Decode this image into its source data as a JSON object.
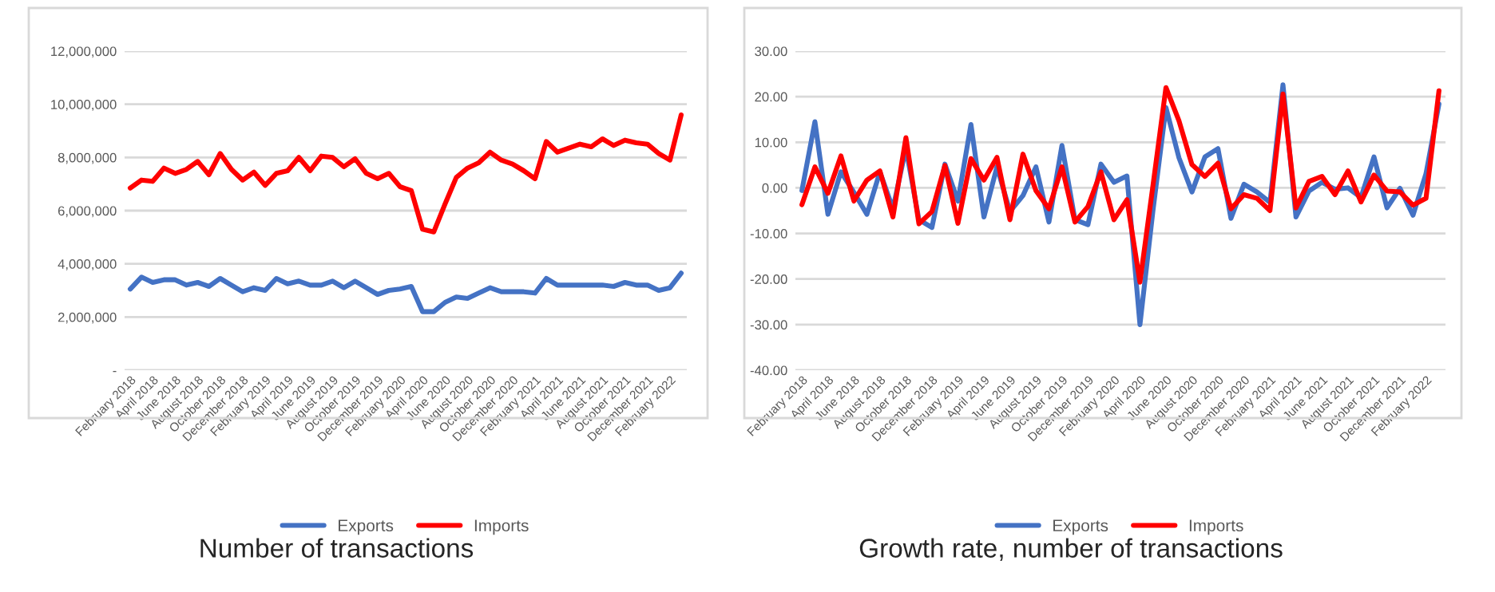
{
  "chart_data": [
    {
      "type": "line",
      "title": "Number of transactions",
      "categories": [
        "February 2018",
        null,
        "April 2018",
        null,
        "June 2018",
        null,
        "August 2018",
        null,
        "October 2018",
        null,
        "December 2018",
        null,
        "February 2019",
        null,
        "April 2019",
        null,
        "June 2019",
        null,
        "August 2019",
        null,
        "October 2019",
        null,
        "December 2019",
        null,
        "February 2020",
        null,
        "April 2020",
        null,
        "June 2020",
        null,
        "August 2020",
        null,
        "October 2020",
        null,
        "December 2020",
        null,
        "February 2021",
        null,
        "April 2021",
        null,
        "June 2021",
        null,
        "August 2021",
        null,
        "October 2021",
        null,
        "December 2021",
        null,
        "February 2022",
        null
      ],
      "series": [
        {
          "name": "Exports",
          "color": "#4472c4",
          "values": [
            3050000,
            3500000,
            3300000,
            3400000,
            3400000,
            3200000,
            3300000,
            3150000,
            3450000,
            3200000,
            2950000,
            3100000,
            3000000,
            3450000,
            3250000,
            3350000,
            3200000,
            3200000,
            3350000,
            3100000,
            3350000,
            3100000,
            2850000,
            3000000,
            3050000,
            3150000,
            2200000,
            2200000,
            2550000,
            2750000,
            2700000,
            2900000,
            3100000,
            2950000,
            2950000,
            2950000,
            2900000,
            3450000,
            3200000,
            3200000,
            3200000,
            3200000,
            3200000,
            3150000,
            3300000,
            3200000,
            3200000,
            3000000,
            3100000,
            3650000
          ]
        },
        {
          "name": "Imports",
          "color": "#ff0000",
          "values": [
            6850000,
            7150000,
            7100000,
            7600000,
            7400000,
            7550000,
            7850000,
            7350000,
            8150000,
            7550000,
            7150000,
            7450000,
            6950000,
            7400000,
            7500000,
            8000000,
            7500000,
            8050000,
            8000000,
            7650000,
            7950000,
            7400000,
            7200000,
            7400000,
            6900000,
            6750000,
            5300000,
            5200000,
            6250000,
            7250000,
            7600000,
            7800000,
            8200000,
            7900000,
            7750000,
            7500000,
            7200000,
            8600000,
            8200000,
            8350000,
            8500000,
            8400000,
            8700000,
            8450000,
            8650000,
            8550000,
            8500000,
            8150000,
            7900000,
            9600000
          ]
        }
      ],
      "ylim": [
        0,
        12000000
      ],
      "yticks": [
        {
          "value": 0,
          "label": "-"
        },
        {
          "value": 2000000,
          "label": "2,000,000"
        },
        {
          "value": 4000000,
          "label": "4,000,000"
        },
        {
          "value": 6000000,
          "label": "6,000,000"
        },
        {
          "value": 8000000,
          "label": "8,000,000"
        },
        {
          "value": 10000000,
          "label": "10,000,000"
        },
        {
          "value": 12000000,
          "label": "12,000,000"
        }
      ],
      "grid": "y",
      "legend": "bottom",
      "marker": "none",
      "line_style": "solid"
    },
    {
      "type": "line",
      "title": "Growth rate, number of transactions",
      "categories": [
        "February 2018",
        null,
        "April 2018",
        null,
        "June 2018",
        null,
        "August 2018",
        null,
        "October 2018",
        null,
        "December 2018",
        null,
        "February 2019",
        null,
        "April 2019",
        null,
        "June 2019",
        null,
        "August 2019",
        null,
        "October 2019",
        null,
        "December 2019",
        null,
        "February 2020",
        null,
        "April 2020",
        null,
        "June 2020",
        null,
        "August 2020",
        null,
        "October 2020",
        null,
        "December 2020",
        null,
        "February 2021",
        null,
        "April 2021",
        null,
        "June 2021",
        null,
        "August 2021",
        null,
        "October 2021",
        null,
        "December 2021",
        null,
        "February 2022",
        null
      ],
      "series": [
        {
          "name": "Exports",
          "color": "#4472c4",
          "values": [
            -0.6,
            14.5,
            -5.8,
            3.5,
            -1,
            -5.8,
            3.5,
            -4.6,
            8.7,
            -7,
            -8.7,
            5.2,
            -2.9,
            13.9,
            -6.4,
            4.6,
            -5.2,
            -1.7,
            4.6,
            -7.5,
            9.3,
            -7,
            -8.1,
            5.2,
            1.2,
            2.6,
            -30,
            -5,
            17.6,
            6.6,
            -0.9,
            6.8,
            8.6,
            -6.7,
            0.8,
            -0.9,
            -3.2,
            22.6,
            -6.4,
            -0.7,
            1.2,
            -0.3,
            0,
            -2.1,
            6.8,
            -4.4,
            -0.1,
            -6,
            3.1,
            18.4
          ]
        },
        {
          "name": "Imports",
          "color": "#ff0000",
          "values": [
            -3.7,
            4.6,
            -1.2,
            7,
            -2.9,
            1.7,
            3.7,
            -6.4,
            11,
            -7.9,
            -5.2,
            4.9,
            -7.8,
            6.4,
            1.7,
            6.7,
            -7,
            7.4,
            -0.6,
            -4.6,
            4.6,
            -7.5,
            -4.1,
            3.5,
            -7,
            -2.6,
            -20.7,
            0.5,
            22,
            14.7,
            5.1,
            2.5,
            5.4,
            -4.6,
            -1.5,
            -2.3,
            -5,
            20.6,
            -4.4,
            1.4,
            2.5,
            -1.5,
            3.7,
            -3.1,
            2.8,
            -0.7,
            -0.9,
            -3.8,
            -2.3,
            21.3
          ]
        }
      ],
      "ylim": [
        -40,
        30
      ],
      "yticks": [
        {
          "value": -40,
          "label": "-40.00"
        },
        {
          "value": -30,
          "label": "-30.00"
        },
        {
          "value": -20,
          "label": "-20.00"
        },
        {
          "value": -10,
          "label": "-10.00"
        },
        {
          "value": 0,
          "label": "0.00"
        },
        {
          "value": 10,
          "label": "10.00"
        },
        {
          "value": 20,
          "label": "20.00"
        },
        {
          "value": 30,
          "label": "30.00"
        }
      ],
      "grid": "y",
      "legend": "bottom",
      "marker": "none",
      "line_style": "solid"
    }
  ]
}
